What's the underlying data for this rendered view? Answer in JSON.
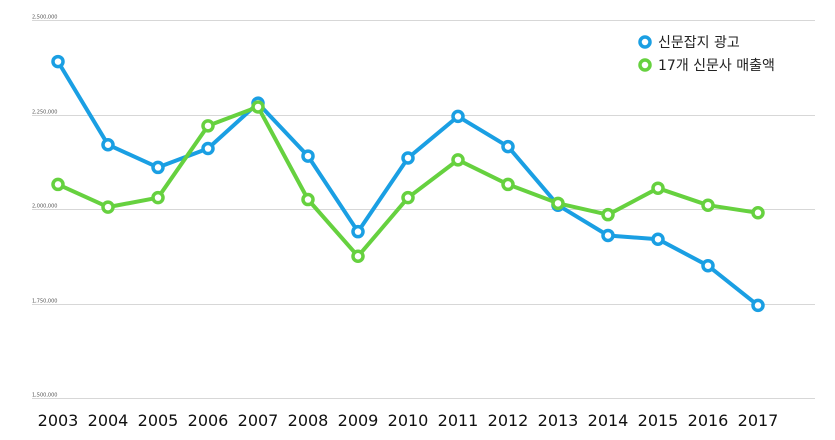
{
  "chart_data": {
    "type": "line",
    "x": [
      "2003",
      "2004",
      "2005",
      "2006",
      "2007",
      "2008",
      "2009",
      "2010",
      "2011",
      "2012",
      "2013",
      "2014",
      "2015",
      "2016",
      "2017"
    ],
    "series": [
      {
        "name": "신문잡지 광고",
        "color": "#1a9fe3",
        "values": [
          2390000,
          2170000,
          2110000,
          2160000,
          2280000,
          2140000,
          1940000,
          2135000,
          2245000,
          2165000,
          2010000,
          1930000,
          1920000,
          1850000,
          1745000
        ]
      },
      {
        "name": "17개 신문사 매출액",
        "color": "#66d13f",
        "values": [
          2065000,
          2005000,
          2030000,
          2220000,
          2270000,
          2025000,
          1875000,
          2030000,
          2130000,
          2065000,
          2015000,
          1985000,
          2055000,
          2010000,
          1990000
        ]
      }
    ],
    "yticks": [
      1500000,
      1750000,
      2000000,
      2250000,
      2500000
    ],
    "ytick_labels": [
      "1,500,000",
      "1,750,000",
      "2,000,000",
      "2,250,000",
      "2,500,000"
    ],
    "ylim": [
      1500000,
      2500000
    ],
    "grid": true,
    "legend": "top-right"
  }
}
